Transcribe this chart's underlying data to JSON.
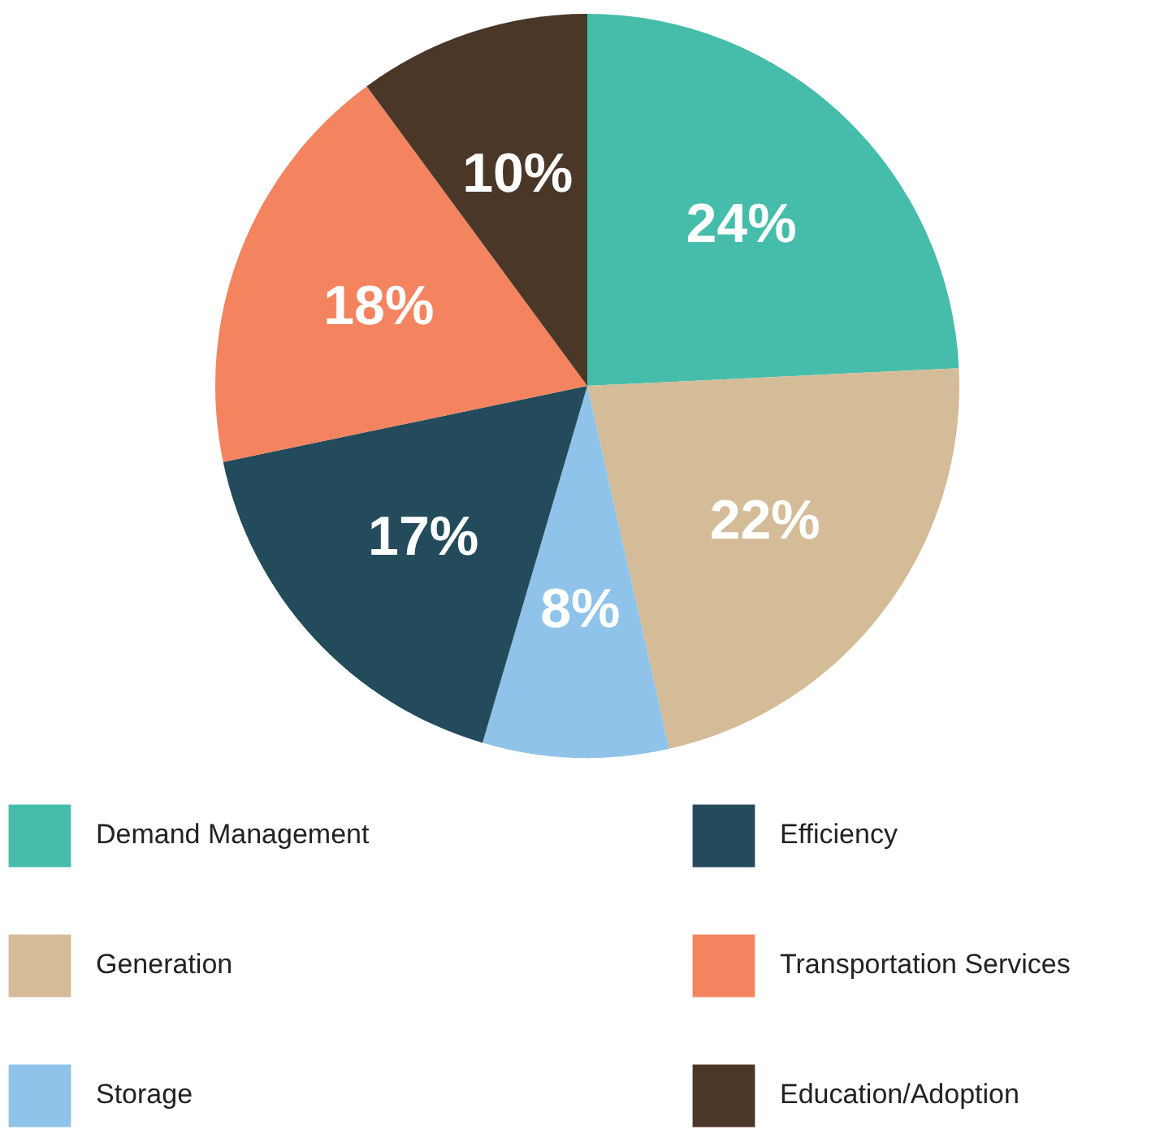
{
  "chart_data": {
    "type": "pie",
    "categories": [
      "Demand Management",
      "Generation",
      "Storage",
      "Efficiency",
      "Transportation Services",
      "Education/Adoption"
    ],
    "values": [
      24,
      22,
      8,
      17,
      18,
      10
    ],
    "colors": [
      "#46bdab",
      "#d4bc98",
      "#8fc3e9",
      "#234b5b",
      "#f3845f",
      "#4a3728"
    ],
    "value_labels": [
      "24%",
      "22%",
      "8%",
      "17%",
      "18%",
      "10%"
    ],
    "legend": "bottom"
  }
}
